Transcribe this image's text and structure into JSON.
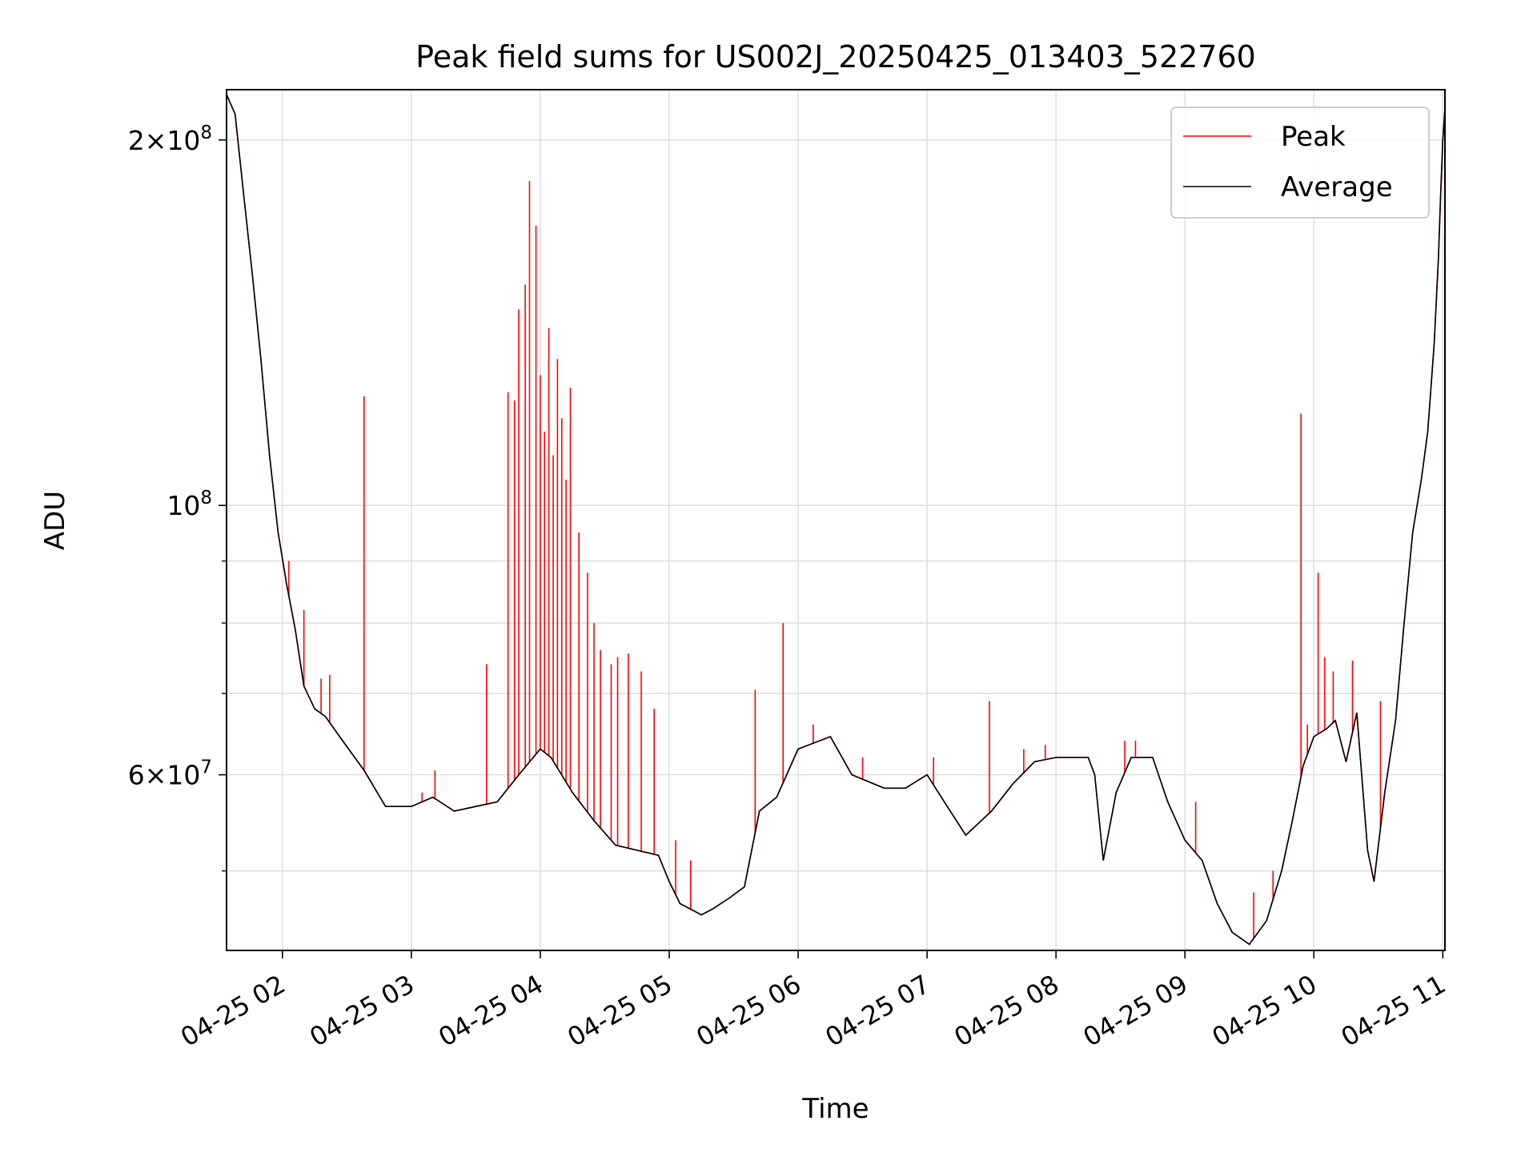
{
  "chart_data": {
    "type": "line",
    "title": "Peak field sums for US002J_20250425_013403_522760",
    "xlabel": "Time",
    "ylabel": "ADU",
    "yscale": "log",
    "grid": true,
    "legend_position": "top-right",
    "xlim": [
      "2025-04-25 01:34",
      "2025-04-25 11:01"
    ],
    "ylim": [
      43000000,
      220000000
    ],
    "x_ticks": [
      {
        "t": "2025-04-25 02:00",
        "label": "04-25 02"
      },
      {
        "t": "2025-04-25 03:00",
        "label": "04-25 03"
      },
      {
        "t": "2025-04-25 04:00",
        "label": "04-25 04"
      },
      {
        "t": "2025-04-25 05:00",
        "label": "04-25 05"
      },
      {
        "t": "2025-04-25 06:00",
        "label": "04-25 06"
      },
      {
        "t": "2025-04-25 07:00",
        "label": "04-25 07"
      },
      {
        "t": "2025-04-25 08:00",
        "label": "04-25 08"
      },
      {
        "t": "2025-04-25 09:00",
        "label": "04-25 09"
      },
      {
        "t": "2025-04-25 10:00",
        "label": "04-25 10"
      },
      {
        "t": "2025-04-25 11:00",
        "label": "04-25 11"
      }
    ],
    "y_ticks_labeled": [
      {
        "value": 60000000,
        "mant": "6",
        "exp": "7"
      },
      {
        "value": 100000000,
        "mant": "",
        "exp": "8"
      },
      {
        "value": 200000000,
        "mant": "2",
        "exp": "8"
      }
    ],
    "y_ticks_minor": [
      50000000,
      70000000,
      80000000,
      90000000
    ],
    "series": [
      {
        "name": "Average",
        "color": "#000000",
        "points": [
          [
            "2025-04-25 01:34",
            218000000
          ],
          [
            "2025-04-25 01:38",
            210000000
          ],
          [
            "2025-04-25 01:42",
            180000000
          ],
          [
            "2025-04-25 01:46",
            155000000
          ],
          [
            "2025-04-25 01:50",
            132000000
          ],
          [
            "2025-04-25 01:54",
            110000000
          ],
          [
            "2025-04-25 01:58",
            95000000
          ],
          [
            "2025-04-25 02:02",
            86000000
          ],
          [
            "2025-04-25 02:06",
            79000000
          ],
          [
            "2025-04-25 02:10",
            71000000
          ],
          [
            "2025-04-25 02:15",
            68000000
          ],
          [
            "2025-04-25 02:20",
            67000000
          ],
          [
            "2025-04-25 02:28",
            64000000
          ],
          [
            "2025-04-25 02:38",
            60500000
          ],
          [
            "2025-04-25 02:48",
            56500000
          ],
          [
            "2025-04-25 03:00",
            56500000
          ],
          [
            "2025-04-25 03:10",
            57500000
          ],
          [
            "2025-04-25 03:20",
            56000000
          ],
          [
            "2025-04-25 03:30",
            56500000
          ],
          [
            "2025-04-25 03:40",
            57000000
          ],
          [
            "2025-04-25 03:50",
            60000000
          ],
          [
            "2025-04-25 04:00",
            63000000
          ],
          [
            "2025-04-25 04:05",
            62000000
          ],
          [
            "2025-04-25 04:15",
            58000000
          ],
          [
            "2025-04-25 04:25",
            55000000
          ],
          [
            "2025-04-25 04:35",
            52500000
          ],
          [
            "2025-04-25 04:45",
            52000000
          ],
          [
            "2025-04-25 04:55",
            51500000
          ],
          [
            "2025-04-25 05:00",
            49000000
          ],
          [
            "2025-04-25 05:05",
            47000000
          ],
          [
            "2025-04-25 05:15",
            46000000
          ],
          [
            "2025-04-25 05:20",
            46500000
          ],
          [
            "2025-04-25 05:28",
            47500000
          ],
          [
            "2025-04-25 05:35",
            48500000
          ],
          [
            "2025-04-25 05:42",
            56000000
          ],
          [
            "2025-04-25 05:50",
            57500000
          ],
          [
            "2025-04-25 06:00",
            63000000
          ],
          [
            "2025-04-25 06:15",
            64500000
          ],
          [
            "2025-04-25 06:25",
            60000000
          ],
          [
            "2025-04-25 06:40",
            58500000
          ],
          [
            "2025-04-25 06:50",
            58500000
          ],
          [
            "2025-04-25 07:00",
            60000000
          ],
          [
            "2025-04-25 07:08",
            57000000
          ],
          [
            "2025-04-25 07:18",
            53500000
          ],
          [
            "2025-04-25 07:30",
            56000000
          ],
          [
            "2025-04-25 07:40",
            59000000
          ],
          [
            "2025-04-25 07:50",
            61500000
          ],
          [
            "2025-04-25 08:00",
            62000000
          ],
          [
            "2025-04-25 08:15",
            62000000
          ],
          [
            "2025-04-25 08:18",
            60000000
          ],
          [
            "2025-04-25 08:22",
            51000000
          ],
          [
            "2025-04-25 08:28",
            58000000
          ],
          [
            "2025-04-25 08:35",
            62000000
          ],
          [
            "2025-04-25 08:45",
            62000000
          ],
          [
            "2025-04-25 08:52",
            57000000
          ],
          [
            "2025-04-25 09:00",
            53000000
          ],
          [
            "2025-04-25 09:08",
            51000000
          ],
          [
            "2025-04-25 09:15",
            47000000
          ],
          [
            "2025-04-25 09:22",
            44500000
          ],
          [
            "2025-04-25 09:30",
            43500000
          ],
          [
            "2025-04-25 09:38",
            45500000
          ],
          [
            "2025-04-25 09:45",
            50000000
          ],
          [
            "2025-04-25 09:50",
            55000000
          ],
          [
            "2025-04-25 09:55",
            61000000
          ],
          [
            "2025-04-25 10:00",
            64500000
          ],
          [
            "2025-04-25 10:06",
            65500000
          ],
          [
            "2025-04-25 10:10",
            66500000
          ],
          [
            "2025-04-25 10:15",
            61500000
          ],
          [
            "2025-04-25 10:20",
            67500000
          ],
          [
            "2025-04-25 10:25",
            52000000
          ],
          [
            "2025-04-25 10:28",
            49000000
          ],
          [
            "2025-04-25 10:33",
            58000000
          ],
          [
            "2025-04-25 10:38",
            66500000
          ],
          [
            "2025-04-25 10:42",
            80000000
          ],
          [
            "2025-04-25 10:46",
            95000000
          ],
          [
            "2025-04-25 10:50",
            105000000
          ],
          [
            "2025-04-25 10:53",
            115000000
          ],
          [
            "2025-04-25 10:56",
            136000000
          ],
          [
            "2025-04-25 10:58",
            160000000
          ],
          [
            "2025-04-25 10:59",
            180000000
          ],
          [
            "2025-04-25 11:00",
            200000000
          ],
          [
            "2025-04-25 11:01",
            212000000
          ]
        ]
      },
      {
        "name": "Peak",
        "color": "#ff0000",
        "spikes": [
          [
            "2025-04-25 02:03",
            90000000
          ],
          [
            "2025-04-25 02:10",
            82000000
          ],
          [
            "2025-04-25 02:18",
            72000000
          ],
          [
            "2025-04-25 02:22",
            72500000
          ],
          [
            "2025-04-25 02:38",
            123000000
          ],
          [
            "2025-04-25 03:05",
            58000000
          ],
          [
            "2025-04-25 03:11",
            60500000
          ],
          [
            "2025-04-25 03:35",
            74000000
          ],
          [
            "2025-04-25 03:45",
            124000000
          ],
          [
            "2025-04-25 03:48",
            122000000
          ],
          [
            "2025-04-25 03:50",
            145000000
          ],
          [
            "2025-04-25 03:53",
            152000000
          ],
          [
            "2025-04-25 03:55",
            185000000
          ],
          [
            "2025-04-25 03:58",
            170000000
          ],
          [
            "2025-04-25 04:00",
            128000000
          ],
          [
            "2025-04-25 04:02",
            115000000
          ],
          [
            "2025-04-25 04:04",
            140000000
          ],
          [
            "2025-04-25 04:06",
            110000000
          ],
          [
            "2025-04-25 04:08",
            132000000
          ],
          [
            "2025-04-25 04:10",
            118000000
          ],
          [
            "2025-04-25 04:12",
            105000000
          ],
          [
            "2025-04-25 04:14",
            125000000
          ],
          [
            "2025-04-25 04:18",
            95000000
          ],
          [
            "2025-04-25 04:22",
            88000000
          ],
          [
            "2025-04-25 04:25",
            80000000
          ],
          [
            "2025-04-25 04:28",
            76000000
          ],
          [
            "2025-04-25 04:33",
            74000000
          ],
          [
            "2025-04-25 04:36",
            75000000
          ],
          [
            "2025-04-25 04:41",
            75500000
          ],
          [
            "2025-04-25 04:47",
            73000000
          ],
          [
            "2025-04-25 04:53",
            68000000
          ],
          [
            "2025-04-25 05:03",
            53000000
          ],
          [
            "2025-04-25 05:10",
            51000000
          ],
          [
            "2025-04-25 05:40",
            70500000
          ],
          [
            "2025-04-25 05:53",
            80000000
          ],
          [
            "2025-04-25 06:07",
            66000000
          ],
          [
            "2025-04-25 06:30",
            62000000
          ],
          [
            "2025-04-25 07:03",
            62000000
          ],
          [
            "2025-04-25 07:29",
            69000000
          ],
          [
            "2025-04-25 07:45",
            63000000
          ],
          [
            "2025-04-25 07:55",
            63500000
          ],
          [
            "2025-04-25 08:32",
            64000000
          ],
          [
            "2025-04-25 08:37",
            64000000
          ],
          [
            "2025-04-25 09:05",
            57000000
          ],
          [
            "2025-04-25 09:32",
            48000000
          ],
          [
            "2025-04-25 09:41",
            50000000
          ],
          [
            "2025-04-25 09:54",
            119000000
          ],
          [
            "2025-04-25 09:57",
            66000000
          ],
          [
            "2025-04-25 10:02",
            88000000
          ],
          [
            "2025-04-25 10:05",
            75000000
          ],
          [
            "2025-04-25 10:09",
            73000000
          ],
          [
            "2025-04-25 10:18",
            74500000
          ],
          [
            "2025-04-25 10:31",
            69000000
          ]
        ]
      }
    ]
  }
}
